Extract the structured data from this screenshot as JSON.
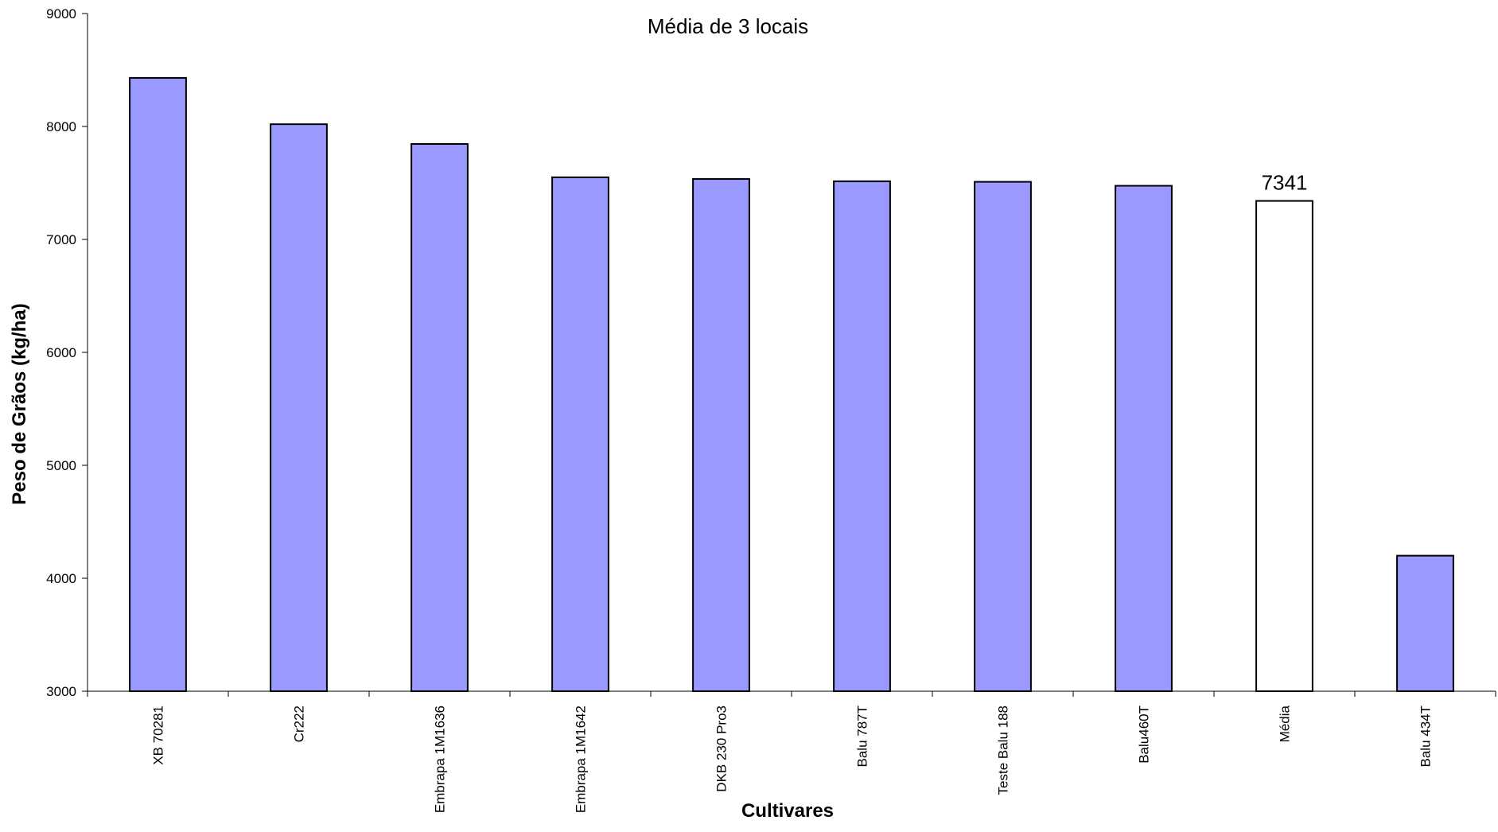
{
  "chart_data": {
    "type": "bar",
    "title": "Média de 3 locais",
    "xlabel": "Cultivares",
    "ylabel": "Peso de Grãos (kg/ha)",
    "ylim": [
      3000,
      9000
    ],
    "yticks": [
      "3000",
      "4000",
      "5000",
      "6000",
      "7000",
      "8000",
      "9000"
    ],
    "grid": false,
    "categories": [
      "XB 70281",
      "Cr222",
      "Embrapa 1M1636",
      "Embrapa 1M1642",
      "DKB 230 Pro3",
      "Balu 787T",
      "Teste Balu 188",
      "Balu460T",
      "Média",
      "Balu 434T"
    ],
    "values": [
      8430,
      8020,
      7845,
      7550,
      7535,
      7515,
      7510,
      7475,
      7341,
      4200
    ],
    "bar_colors": [
      "#9999ff",
      "#9999ff",
      "#9999ff",
      "#9999ff",
      "#9999ff",
      "#9999ff",
      "#9999ff",
      "#9999ff",
      "#ffffff",
      "#9999ff"
    ],
    "data_labels": [
      "",
      "",
      "",
      "",
      "",
      "",
      "",
      "",
      "7341",
      ""
    ]
  }
}
